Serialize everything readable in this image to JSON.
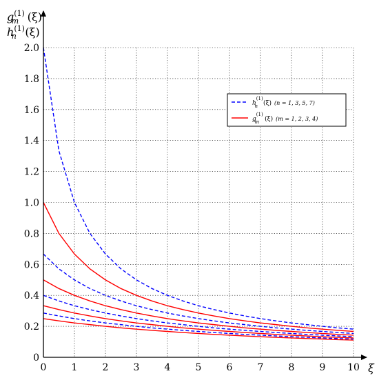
{
  "chart_data": {
    "type": "line",
    "title": "",
    "xlabel": "ξ",
    "ylabel_lines": [
      {
        "base": "g",
        "sub": "m",
        "sup": "(1)",
        "arg": "(ξ)"
      },
      {
        "base": "h",
        "sub": "n",
        "sup": "(1)",
        "arg": "(ξ)"
      }
    ],
    "xlim": [
      0,
      10
    ],
    "ylim": [
      0,
      2.0
    ],
    "xticks": [
      "0",
      "1",
      "2",
      "3",
      "4",
      "5",
      "6",
      "7",
      "8",
      "9",
      "10"
    ],
    "yticks": [
      "0",
      "0.2",
      "0.4",
      "0.6",
      "0.8",
      "1.0",
      "1.2",
      "1.4",
      "1.6",
      "1.8",
      "2.0"
    ],
    "grid": true,
    "legend_position": "top-right",
    "x": [
      0,
      0.5,
      1,
      1.5,
      2,
      2.5,
      3,
      3.5,
      4,
      4.5,
      5,
      5.5,
      6,
      6.5,
      7,
      7.5,
      8,
      8.5,
      9,
      9.5,
      10
    ],
    "series": [
      {
        "group": "h",
        "n": 1,
        "style": "dashed",
        "color": "#0000ff",
        "values": [
          2.0,
          1.333,
          1.0,
          0.8,
          0.667,
          0.571,
          0.5,
          0.444,
          0.4,
          0.364,
          0.333,
          0.308,
          0.286,
          0.267,
          0.25,
          0.235,
          0.222,
          0.211,
          0.2,
          0.19,
          0.182
        ]
      },
      {
        "group": "h",
        "n": 3,
        "style": "dashed",
        "color": "#0000ff",
        "values": [
          0.667,
          0.571,
          0.5,
          0.444,
          0.4,
          0.364,
          0.333,
          0.308,
          0.286,
          0.267,
          0.25,
          0.235,
          0.222,
          0.211,
          0.2,
          0.19,
          0.182,
          0.174,
          0.167,
          0.16,
          0.154
        ]
      },
      {
        "group": "h",
        "n": 5,
        "style": "dashed",
        "color": "#0000ff",
        "values": [
          0.4,
          0.364,
          0.333,
          0.308,
          0.286,
          0.267,
          0.25,
          0.235,
          0.222,
          0.211,
          0.2,
          0.19,
          0.182,
          0.174,
          0.167,
          0.16,
          0.154,
          0.148,
          0.143,
          0.138,
          0.133
        ]
      },
      {
        "group": "h",
        "n": 7,
        "style": "dashed",
        "color": "#0000ff",
        "values": [
          0.286,
          0.267,
          0.25,
          0.235,
          0.222,
          0.211,
          0.2,
          0.19,
          0.182,
          0.174,
          0.167,
          0.16,
          0.154,
          0.148,
          0.143,
          0.138,
          0.133,
          0.129,
          0.125,
          0.121,
          0.118
        ]
      },
      {
        "group": "g",
        "m": 1,
        "style": "solid",
        "color": "#ff0000",
        "values": [
          1.0,
          0.8,
          0.667,
          0.571,
          0.5,
          0.444,
          0.4,
          0.364,
          0.333,
          0.308,
          0.286,
          0.267,
          0.25,
          0.235,
          0.222,
          0.211,
          0.2,
          0.19,
          0.182,
          0.174,
          0.167
        ]
      },
      {
        "group": "g",
        "m": 2,
        "style": "solid",
        "color": "#ff0000",
        "values": [
          0.5,
          0.444,
          0.4,
          0.364,
          0.333,
          0.308,
          0.286,
          0.267,
          0.25,
          0.235,
          0.222,
          0.211,
          0.2,
          0.19,
          0.182,
          0.174,
          0.167,
          0.16,
          0.154,
          0.148,
          0.143
        ]
      },
      {
        "group": "g",
        "m": 3,
        "style": "solid",
        "color": "#ff0000",
        "values": [
          0.333,
          0.308,
          0.286,
          0.267,
          0.25,
          0.235,
          0.222,
          0.211,
          0.2,
          0.19,
          0.182,
          0.174,
          0.167,
          0.16,
          0.154,
          0.148,
          0.143,
          0.138,
          0.133,
          0.129,
          0.125
        ]
      },
      {
        "group": "g",
        "m": 4,
        "style": "solid",
        "color": "#ff0000",
        "values": [
          0.25,
          0.235,
          0.222,
          0.211,
          0.2,
          0.19,
          0.182,
          0.174,
          0.167,
          0.16,
          0.154,
          0.148,
          0.143,
          0.138,
          0.133,
          0.129,
          0.125,
          0.121,
          0.118,
          0.114,
          0.111
        ]
      }
    ],
    "legend": [
      {
        "base": "h",
        "sub": "n",
        "sup": "(1)",
        "arg": "(ξ)",
        "note": "(n = 1, 3, 5, 7)",
        "style": "dashed",
        "color": "#0000ff"
      },
      {
        "base": "g",
        "sub": "m",
        "sup": "(1)",
        "arg": "(ξ)",
        "note": "(m = 1, 2, 3, 4)",
        "style": "solid",
        "color": "#ff0000"
      }
    ]
  }
}
